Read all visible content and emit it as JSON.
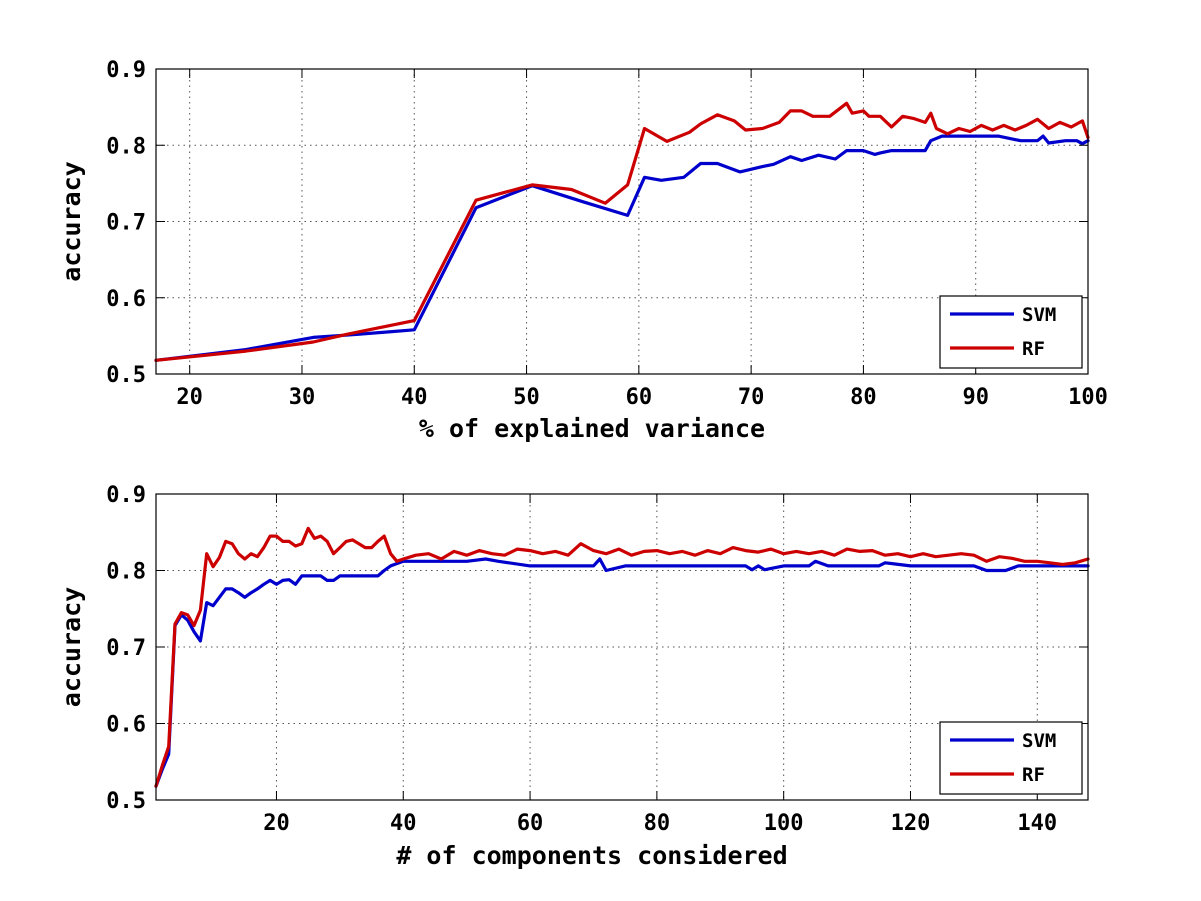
{
  "chart_data": [
    {
      "type": "line",
      "xlabel": "% of explained variance",
      "ylabel": "accuracy",
      "xlim": [
        17,
        100
      ],
      "ylim": [
        0.5,
        0.9
      ],
      "xticks": [
        20,
        30,
        40,
        50,
        60,
        70,
        80,
        90,
        100
      ],
      "yticks": [
        0.5,
        0.6,
        0.7,
        0.8,
        0.9
      ],
      "xtick_labels": [
        "20",
        "30",
        "40",
        "50",
        "60",
        "70",
        "80",
        "90",
        "100"
      ],
      "ytick_labels": [
        "0.5",
        "0.6",
        "0.7",
        "0.8",
        "0.9"
      ],
      "grid": true,
      "legend_position": "bottom-right",
      "series": [
        {
          "name": "SVM",
          "color": "#0000cc",
          "x": [
            17,
            25,
            31,
            35,
            40,
            45.5,
            50.5,
            55,
            59,
            60.5,
            62,
            64,
            65.5,
            67,
            69,
            71,
            72,
            73.5,
            74.5,
            76,
            77.5,
            78.5,
            80,
            81,
            81.5,
            82.5,
            84,
            85.5,
            86,
            87,
            88,
            90,
            92,
            94,
            95.5,
            96,
            96.5,
            98,
            99,
            99.5,
            100
          ],
          "y": [
            0.518,
            0.532,
            0.548,
            0.552,
            0.558,
            0.718,
            0.747,
            0.726,
            0.708,
            0.758,
            0.754,
            0.758,
            0.776,
            0.776,
            0.765,
            0.772,
            0.775,
            0.785,
            0.78,
            0.787,
            0.782,
            0.793,
            0.793,
            0.788,
            0.79,
            0.793,
            0.793,
            0.793,
            0.806,
            0.812,
            0.812,
            0.812,
            0.812,
            0.806,
            0.806,
            0.812,
            0.803,
            0.806,
            0.806,
            0.802,
            0.806
          ]
        },
        {
          "name": "RF",
          "color": "#cc0000",
          "x": [
            17,
            25,
            31,
            34,
            40,
            45.5,
            50.5,
            54,
            57,
            59,
            60.5,
            62.5,
            64.5,
            65.5,
            67,
            68.5,
            69.5,
            71,
            72.5,
            73.5,
            74.5,
            75.5,
            77,
            78.5,
            79,
            80,
            80.5,
            81.5,
            82.5,
            83.5,
            84.5,
            85.5,
            86,
            86.5,
            87.5,
            88.5,
            89.5,
            90.5,
            91.5,
            92.5,
            93.5,
            94.5,
            95.5,
            96.5,
            97.5,
            98.5,
            99.5,
            100
          ],
          "y": [
            0.518,
            0.53,
            0.542,
            0.552,
            0.57,
            0.728,
            0.748,
            0.742,
            0.724,
            0.748,
            0.822,
            0.805,
            0.817,
            0.828,
            0.84,
            0.832,
            0.82,
            0.822,
            0.83,
            0.845,
            0.845,
            0.838,
            0.838,
            0.855,
            0.842,
            0.845,
            0.838,
            0.838,
            0.824,
            0.838,
            0.835,
            0.83,
            0.842,
            0.822,
            0.815,
            0.822,
            0.818,
            0.826,
            0.82,
            0.826,
            0.82,
            0.826,
            0.834,
            0.822,
            0.83,
            0.824,
            0.832,
            0.81
          ]
        }
      ]
    },
    {
      "type": "line",
      "xlabel": "# of components considered",
      "ylabel": "accuracy",
      "xlim": [
        1,
        148
      ],
      "ylim": [
        0.5,
        0.9
      ],
      "xticks": [
        20,
        40,
        60,
        80,
        100,
        120,
        140
      ],
      "yticks": [
        0.5,
        0.6,
        0.7,
        0.8,
        0.9
      ],
      "xtick_labels": [
        "20",
        "40",
        "60",
        "80",
        "100",
        "120",
        "140"
      ],
      "ytick_labels": [
        "0.5",
        "0.6",
        "0.7",
        "0.8",
        "0.9"
      ],
      "grid": true,
      "legend_position": "bottom-right",
      "series": [
        {
          "name": "SVM",
          "color": "#0000cc",
          "x": [
            1,
            2,
            3,
            4,
            5,
            6,
            7,
            8,
            9,
            10,
            11,
            12,
            13,
            14,
            15,
            16,
            17,
            18,
            19,
            20,
            21,
            22,
            23,
            24,
            25,
            26,
            27,
            28,
            29,
            30,
            32,
            34,
            36,
            37,
            38,
            40,
            45,
            50,
            53,
            55,
            60,
            65,
            70,
            71,
            72,
            75,
            80,
            85,
            90,
            94,
            95,
            96,
            97,
            100,
            104,
            105,
            107,
            110,
            115,
            116,
            120,
            125,
            130,
            132,
            135,
            137,
            140,
            145,
            148
          ],
          "y": [
            0.518,
            0.54,
            0.56,
            0.728,
            0.742,
            0.735,
            0.72,
            0.708,
            0.758,
            0.754,
            0.765,
            0.776,
            0.776,
            0.771,
            0.765,
            0.771,
            0.776,
            0.782,
            0.787,
            0.782,
            0.787,
            0.788,
            0.782,
            0.793,
            0.793,
            0.793,
            0.793,
            0.787,
            0.787,
            0.793,
            0.793,
            0.793,
            0.793,
            0.8,
            0.806,
            0.812,
            0.812,
            0.812,
            0.815,
            0.812,
            0.806,
            0.806,
            0.806,
            0.815,
            0.8,
            0.806,
            0.806,
            0.806,
            0.806,
            0.806,
            0.801,
            0.806,
            0.801,
            0.806,
            0.806,
            0.812,
            0.806,
            0.806,
            0.806,
            0.81,
            0.806,
            0.806,
            0.806,
            0.8,
            0.8,
            0.806,
            0.806,
            0.806,
            0.806
          ]
        },
        {
          "name": "RF",
          "color": "#cc0000",
          "x": [
            1,
            2,
            3,
            4,
            5,
            6,
            7,
            8,
            9,
            10,
            11,
            12,
            13,
            14,
            15,
            16,
            17,
            18,
            19,
            20,
            21,
            22,
            23,
            24,
            25,
            26,
            27,
            28,
            29,
            30,
            31,
            32,
            33,
            34,
            35,
            36,
            37,
            38,
            39,
            40,
            42,
            44,
            46,
            48,
            50,
            52,
            54,
            56,
            58,
            60,
            62,
            64,
            66,
            68,
            70,
            72,
            74,
            76,
            78,
            80,
            82,
            84,
            86,
            88,
            90,
            92,
            94,
            96,
            98,
            100,
            102,
            104,
            106,
            108,
            110,
            112,
            114,
            116,
            118,
            120,
            122,
            124,
            126,
            128,
            130,
            132,
            134,
            136,
            138,
            140,
            142,
            144,
            146,
            148
          ],
          "y": [
            0.518,
            0.545,
            0.57,
            0.73,
            0.745,
            0.742,
            0.728,
            0.748,
            0.822,
            0.805,
            0.817,
            0.838,
            0.835,
            0.822,
            0.815,
            0.822,
            0.818,
            0.83,
            0.845,
            0.845,
            0.838,
            0.838,
            0.832,
            0.835,
            0.855,
            0.842,
            0.845,
            0.838,
            0.822,
            0.83,
            0.838,
            0.84,
            0.835,
            0.83,
            0.83,
            0.838,
            0.845,
            0.822,
            0.812,
            0.815,
            0.82,
            0.822,
            0.815,
            0.825,
            0.82,
            0.826,
            0.822,
            0.82,
            0.828,
            0.826,
            0.822,
            0.825,
            0.82,
            0.835,
            0.826,
            0.822,
            0.828,
            0.82,
            0.825,
            0.826,
            0.822,
            0.825,
            0.82,
            0.826,
            0.822,
            0.83,
            0.826,
            0.824,
            0.828,
            0.822,
            0.825,
            0.822,
            0.825,
            0.82,
            0.828,
            0.825,
            0.826,
            0.82,
            0.822,
            0.818,
            0.822,
            0.818,
            0.82,
            0.822,
            0.82,
            0.812,
            0.818,
            0.816,
            0.812,
            0.812,
            0.81,
            0.808,
            0.81,
            0.815
          ]
        }
      ]
    }
  ]
}
